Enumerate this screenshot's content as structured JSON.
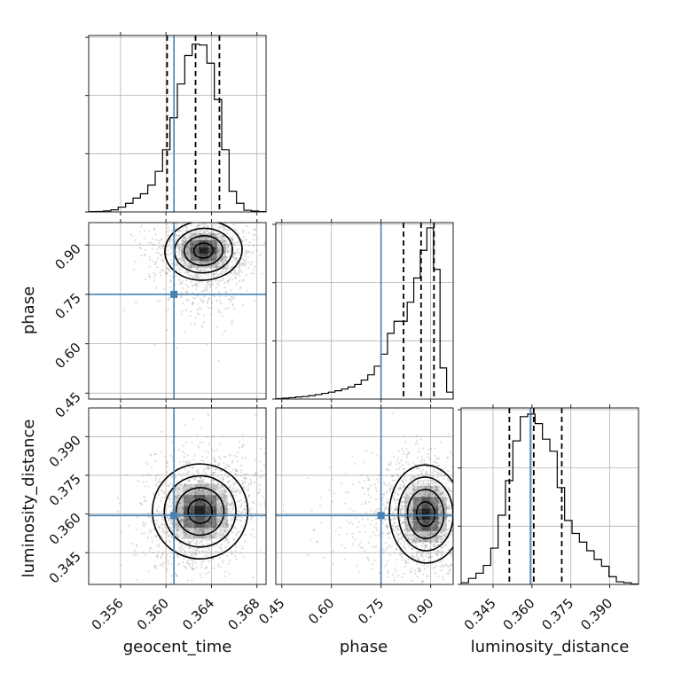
{
  "chart_data": {
    "type": "corner",
    "parameters": [
      "geocent_time",
      "phase",
      "luminosity_distance"
    ],
    "axis_labels": {
      "geocent_time": "geocent_time",
      "phase": "phase",
      "luminosity_distance": "luminosity_distance"
    },
    "ranges": {
      "geocent_time": [
        0.3532,
        0.3688
      ],
      "phase": [
        0.432,
        0.968
      ],
      "luminosity_distance": [
        0.3327,
        0.4011
      ]
    },
    "ticks": {
      "geocent_time": [
        0.356,
        0.36,
        0.364,
        0.368
      ],
      "phase": [
        0.45,
        0.6,
        0.75,
        0.9
      ],
      "luminosity_distance": [
        0.345,
        0.36,
        0.375,
        0.39
      ]
    },
    "tick_labels": {
      "geocent_time": [
        "0.356",
        "0.360",
        "0.364",
        "0.368"
      ],
      "phase": [
        "0.45",
        "0.60",
        "0.75",
        "0.90"
      ],
      "luminosity_distance": [
        "0.345",
        "0.360",
        "0.375",
        "0.390"
      ]
    },
    "truths": {
      "geocent_time": 0.3607,
      "phase": 0.75,
      "luminosity_distance": 0.3594
    },
    "quantiles": {
      "geocent_time": [
        0.3601,
        0.3626,
        0.3647
      ],
      "phase": [
        0.818,
        0.871,
        0.91
      ],
      "luminosity_distance": [
        0.3513,
        0.3607,
        0.3715
      ]
    },
    "histograms": {
      "geocent_time": [
        0.2,
        0.3,
        0.6,
        1.2,
        2.8,
        5.0,
        8.0,
        10.5,
        15.5,
        23.5,
        36.0,
        54.5,
        74.0,
        90.5,
        97.0,
        96.5,
        86.0,
        65.0,
        36.0,
        12.0,
        5.0,
        1.0,
        0.5,
        0.2
      ],
      "phase": [
        0.3,
        0.5,
        0.8,
        1.2,
        1.5,
        2.0,
        2.6,
        3.3,
        4.0,
        4.8,
        5.8,
        7.0,
        8.5,
        11.0,
        14.0,
        19.0,
        26.0,
        38.0,
        45.0,
        45.0,
        56.0,
        70.0,
        86.0,
        99.0,
        75.0,
        18.0,
        4.0
      ],
      "luminosity_distance": [
        1.0,
        3.5,
        6.5,
        11.0,
        21.0,
        40.0,
        60.0,
        83.0,
        97.0,
        98.5,
        93.0,
        84.0,
        77.0,
        56.0,
        37.0,
        29.5,
        24.5,
        19.5,
        14.5,
        10.5,
        4.5,
        1.5,
        1.0,
        0.3
      ]
    },
    "joint_peaks": {
      "phase_vs_geocent_time": {
        "x": 0.3633,
        "y": 0.883
      },
      "luminosity_distance_vs_geocent_time": {
        "x": 0.363,
        "y": 0.361
      },
      "luminosity_distance_vs_phase": {
        "x": 0.885,
        "y": 0.36
      }
    },
    "contour_levels": 4,
    "grid": true
  }
}
